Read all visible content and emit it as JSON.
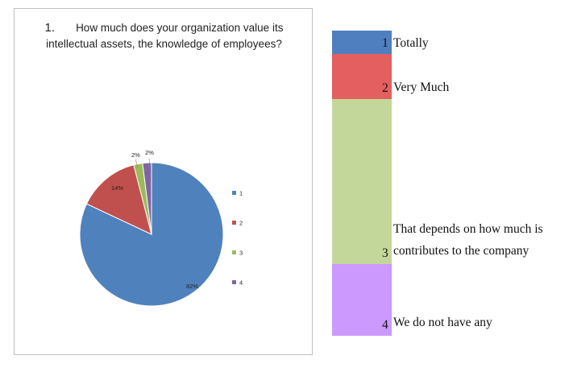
{
  "chart_data": {
    "type": "pie",
    "title_number": "1.",
    "title": "How much does your organization value its intellectual assets, the knowledge of employees?",
    "categories": [
      "1",
      "2",
      "3",
      "4"
    ],
    "values": [
      82,
      14,
      2,
      2
    ],
    "data_labels": [
      "82%",
      "14%",
      "2%",
      "2%"
    ],
    "colors": [
      "#4f81bd",
      "#c0504d",
      "#9bbb59",
      "#8064a2"
    ],
    "legend": [
      "1",
      "2",
      "3",
      "4"
    ],
    "legend_position": "right"
  },
  "answer_key": {
    "rows": [
      {
        "num": "1",
        "text": "Totally",
        "color": "#4f7fbf"
      },
      {
        "num": "2",
        "text": "Very Much",
        "color": "#e45f5f"
      },
      {
        "num": "3",
        "text_line1": "That depends on how much is",
        "text_line2": "contributes to the company",
        "color": "#c4d79b"
      },
      {
        "num": "4",
        "text": "We do not have any",
        "color": "#cc99ff"
      }
    ]
  }
}
